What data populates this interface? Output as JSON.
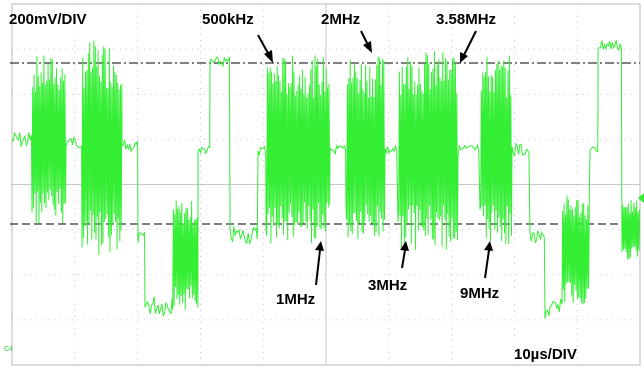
{
  "scope": {
    "channel_marker": "C4",
    "trace_color": "#33ee33",
    "grid_color": "#b8b8b8",
    "vertical_scale": "200mV/DIV",
    "horizontal_scale": "10µs/DIV"
  },
  "annotations": {
    "f500k": "500kHz",
    "f1m": "1MHz",
    "f2m": "2MHz",
    "f3m": "3MHz",
    "f358m": "3.58MHz",
    "f9m": "9MHz"
  }
}
